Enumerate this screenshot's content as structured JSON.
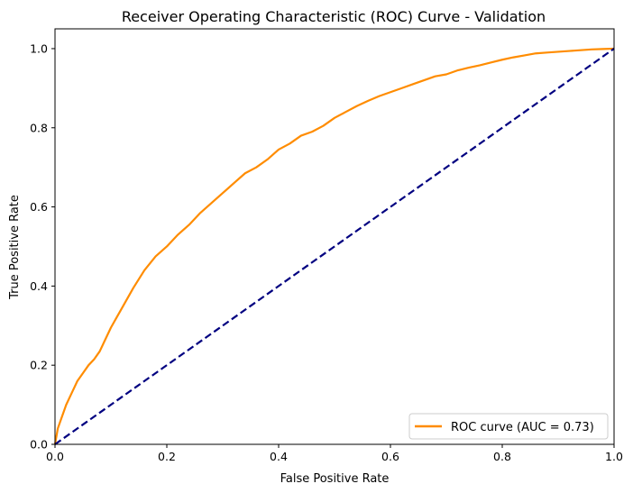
{
  "chart_data": {
    "type": "line",
    "title": "Receiver Operating Characteristic (ROC) Curve - Validation",
    "xlabel": "False Positive Rate",
    "ylabel": "True Positive Rate",
    "xlim": [
      0.0,
      1.0
    ],
    "ylim": [
      0.0,
      1.05
    ],
    "x_ticks": [
      "0.0",
      "0.2",
      "0.4",
      "0.6",
      "0.8",
      "1.0"
    ],
    "y_ticks": [
      "0.0",
      "0.2",
      "0.4",
      "0.6",
      "0.8",
      "1.0"
    ],
    "grid": false,
    "legend_position": "lower-right",
    "series": [
      {
        "name": "ROC curve (AUC = 0.73)",
        "color": "#ff8c00",
        "style": "solid",
        "x": [
          0.0,
          0.005,
          0.01,
          0.02,
          0.03,
          0.04,
          0.05,
          0.06,
          0.07,
          0.08,
          0.09,
          0.1,
          0.12,
          0.14,
          0.16,
          0.18,
          0.2,
          0.22,
          0.24,
          0.26,
          0.28,
          0.3,
          0.32,
          0.34,
          0.36,
          0.38,
          0.4,
          0.42,
          0.44,
          0.46,
          0.48,
          0.5,
          0.52,
          0.54,
          0.56,
          0.58,
          0.6,
          0.62,
          0.64,
          0.66,
          0.68,
          0.7,
          0.72,
          0.74,
          0.76,
          0.78,
          0.8,
          0.82,
          0.84,
          0.86,
          0.88,
          0.9,
          0.92,
          0.94,
          0.96,
          0.98,
          1.0
        ],
        "y": [
          0.0,
          0.04,
          0.06,
          0.1,
          0.13,
          0.16,
          0.18,
          0.2,
          0.215,
          0.235,
          0.265,
          0.295,
          0.345,
          0.395,
          0.44,
          0.475,
          0.5,
          0.53,
          0.555,
          0.585,
          0.61,
          0.635,
          0.66,
          0.685,
          0.7,
          0.72,
          0.745,
          0.76,
          0.78,
          0.79,
          0.805,
          0.825,
          0.84,
          0.855,
          0.868,
          0.88,
          0.89,
          0.9,
          0.91,
          0.92,
          0.93,
          0.935,
          0.945,
          0.952,
          0.958,
          0.965,
          0.972,
          0.978,
          0.983,
          0.988,
          0.99,
          0.992,
          0.994,
          0.996,
          0.998,
          0.999,
          1.0
        ]
      },
      {
        "name": "",
        "color": "#000080",
        "style": "dashed",
        "x": [
          0.0,
          1.0
        ],
        "y": [
          0.0,
          1.0
        ]
      }
    ]
  }
}
